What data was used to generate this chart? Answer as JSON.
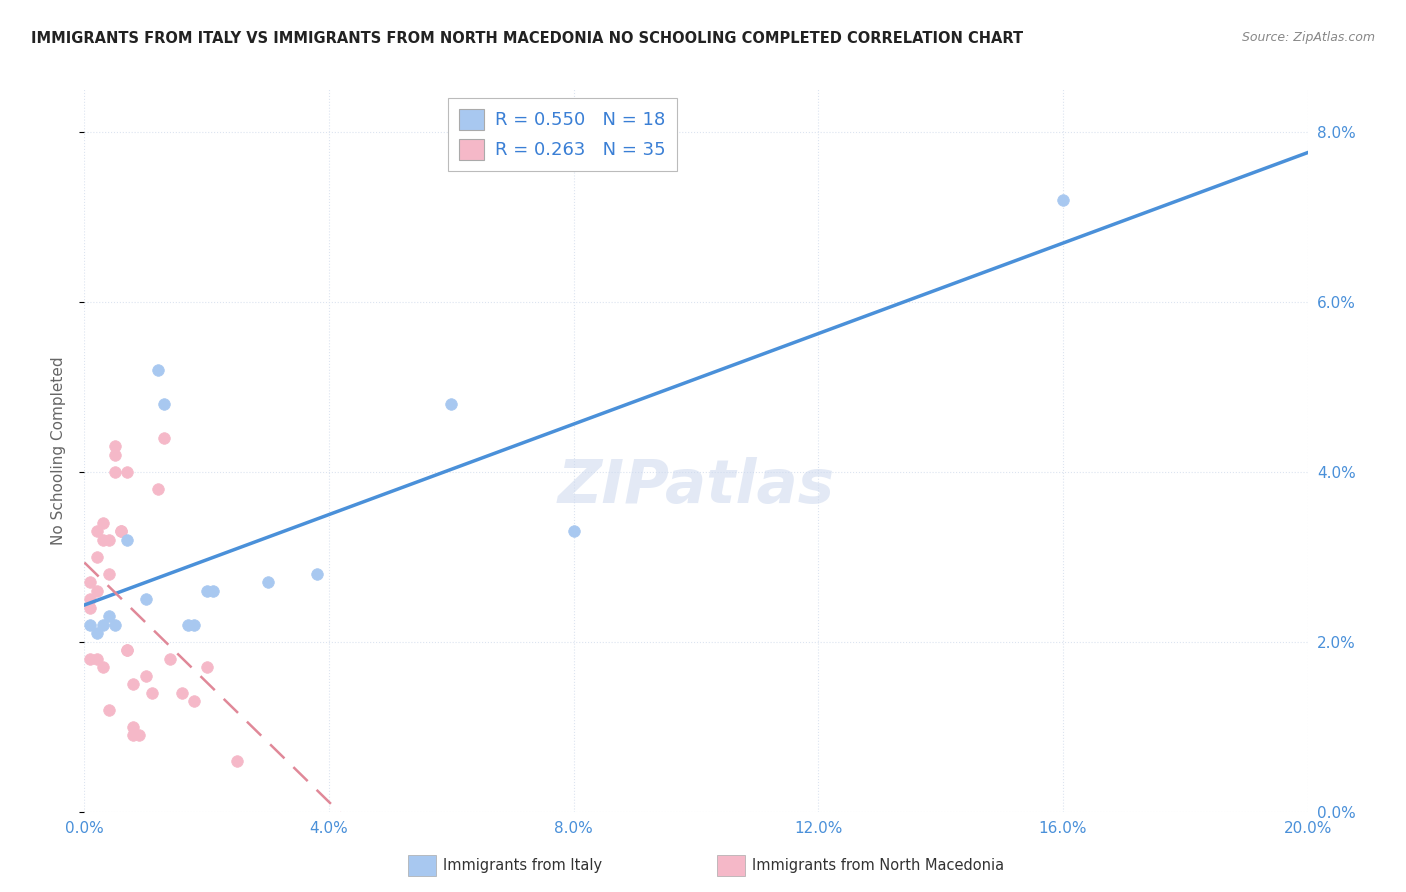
{
  "title": "IMMIGRANTS FROM ITALY VS IMMIGRANTS FROM NORTH MACEDONIA NO SCHOOLING COMPLETED CORRELATION CHART",
  "source": "Source: ZipAtlas.com",
  "ylabel": "No Schooling Completed",
  "xlim": [
    0.0,
    0.2
  ],
  "ylim": [
    0.0,
    0.085
  ],
  "xticks": [
    0.0,
    0.04,
    0.08,
    0.12,
    0.16,
    0.2
  ],
  "yticks": [
    0.0,
    0.02,
    0.04,
    0.06,
    0.08
  ],
  "italy_color": "#a8c8f0",
  "macedonia_color": "#f5b8c8",
  "italy_line_color": "#4a90d9",
  "macedonia_line_color": "#e08898",
  "legend_label_italy": "Immigrants from Italy",
  "legend_label_macedonia": "Immigrants from North Macedonia",
  "R_italy": 0.55,
  "N_italy": 18,
  "R_macedonia": 0.263,
  "N_macedonia": 35,
  "italy_x": [
    0.001,
    0.002,
    0.003,
    0.004,
    0.005,
    0.007,
    0.01,
    0.012,
    0.013,
    0.017,
    0.018,
    0.02,
    0.021,
    0.03,
    0.038,
    0.06,
    0.08,
    0.16
  ],
  "italy_y": [
    0.022,
    0.021,
    0.022,
    0.023,
    0.022,
    0.032,
    0.025,
    0.052,
    0.048,
    0.022,
    0.022,
    0.026,
    0.026,
    0.027,
    0.028,
    0.048,
    0.033,
    0.072
  ],
  "macedonia_x": [
    0.001,
    0.001,
    0.001,
    0.001,
    0.002,
    0.002,
    0.002,
    0.002,
    0.003,
    0.003,
    0.003,
    0.004,
    0.004,
    0.004,
    0.005,
    0.005,
    0.005,
    0.006,
    0.006,
    0.007,
    0.007,
    0.007,
    0.008,
    0.008,
    0.008,
    0.009,
    0.01,
    0.011,
    0.012,
    0.013,
    0.014,
    0.016,
    0.018,
    0.02,
    0.025
  ],
  "macedonia_y": [
    0.027,
    0.025,
    0.024,
    0.018,
    0.033,
    0.03,
    0.026,
    0.018,
    0.034,
    0.032,
    0.017,
    0.032,
    0.028,
    0.012,
    0.043,
    0.042,
    0.04,
    0.033,
    0.033,
    0.04,
    0.019,
    0.019,
    0.015,
    0.01,
    0.009,
    0.009,
    0.016,
    0.014,
    0.038,
    0.044,
    0.018,
    0.014,
    0.013,
    0.017,
    0.006
  ],
  "watermark": "ZIPatlas",
  "background_color": "#ffffff",
  "grid_color": "#dce4f0",
  "marker_size": 70,
  "title_fontsize": 10.5,
  "source_fontsize": 9,
  "legend_fontsize": 13,
  "tick_fontsize": 11,
  "ylabel_fontsize": 11
}
